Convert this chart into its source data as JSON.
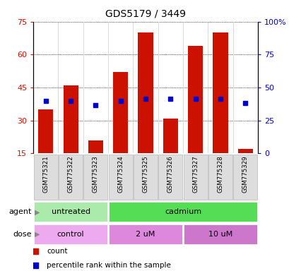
{
  "title": "GDS5179 / 3449",
  "samples": [
    "GSM775321",
    "GSM775322",
    "GSM775323",
    "GSM775324",
    "GSM775325",
    "GSM775326",
    "GSM775327",
    "GSM775328",
    "GSM775329"
  ],
  "bar_bottoms": [
    15,
    15,
    15,
    15,
    15,
    15,
    15,
    15,
    15
  ],
  "bar_tops": [
    35,
    46,
    21,
    52,
    70,
    31,
    64,
    70,
    17
  ],
  "percentile_ranks": [
    39,
    39,
    37,
    39,
    40,
    40,
    40,
    40,
    38
  ],
  "left_yticks": [
    15,
    30,
    45,
    60,
    75
  ],
  "left_ylim": [
    15,
    75
  ],
  "right_yticks": [
    0,
    25,
    50,
    75,
    100
  ],
  "right_yticklabels": [
    "0",
    "25",
    "50",
    "75",
    "100%"
  ],
  "bar_color": "#CC1100",
  "percentile_color": "#0000CC",
  "agent_groups": [
    {
      "label": "untreated",
      "start": 0,
      "end": 3,
      "color": "#AAEAAA"
    },
    {
      "label": "cadmium",
      "start": 3,
      "end": 9,
      "color": "#55DD55"
    }
  ],
  "dose_groups": [
    {
      "label": "control",
      "start": 0,
      "end": 3,
      "color": "#EEAAEE"
    },
    {
      "label": "2 uM",
      "start": 3,
      "end": 6,
      "color": "#DD88DD"
    },
    {
      "label": "10 uM",
      "start": 6,
      "end": 9,
      "color": "#CC77CC"
    }
  ],
  "legend_items": [
    {
      "label": "count",
      "color": "#CC1100"
    },
    {
      "label": "percentile rank within the sample",
      "color": "#0000CC"
    }
  ]
}
